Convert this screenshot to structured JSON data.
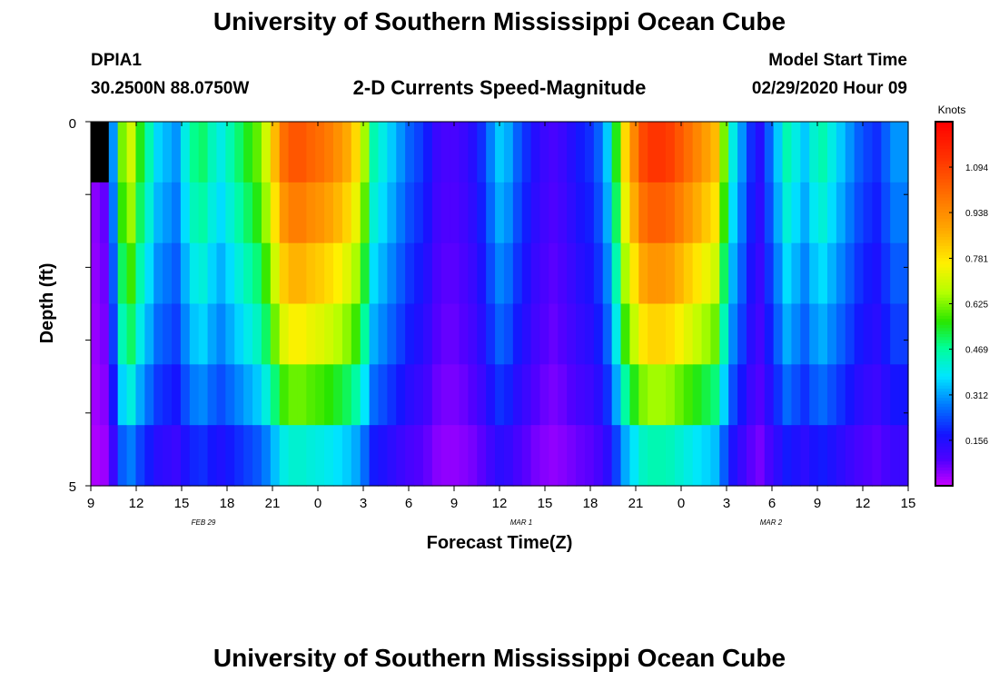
{
  "header": {
    "title_top": "University of Southern Mississippi Ocean Cube",
    "title_bottom": "University of Southern Mississippi Ocean Cube",
    "station_id": "DPIA1",
    "station_coords": "30.2500N 88.0750W",
    "subtitle": "2-D Currents Speed-Magnitude",
    "model_start_label": "Model Start Time",
    "model_start_value": "02/29/2020 Hour 09"
  },
  "chart_data": {
    "type": "heatmap",
    "title": "2-D Currents Speed-Magnitude",
    "xlabel": "Forecast Time(Z)",
    "ylabel": "Depth (ft)",
    "yticks": [
      "0",
      "5"
    ],
    "ylim": [
      0,
      5
    ],
    "xticks": [
      "9",
      "12",
      "15",
      "18",
      "21",
      "0",
      "3",
      "6",
      "9",
      "12",
      "15",
      "18",
      "21",
      "0",
      "3",
      "6",
      "9",
      "12",
      "15"
    ],
    "date_labels": [
      "FEB 29",
      "MAR 1",
      "MAR 2"
    ],
    "colorbar": {
      "label": "Knots",
      "ticks": [
        "1.094",
        "0.938",
        "0.781",
        "0.625",
        "0.469",
        "0.312",
        "0.156"
      ],
      "range": [
        0,
        1.25
      ]
    },
    "surface_speed_by_hour_kn": [
      0.05,
      0.08,
      0.3,
      0.62,
      0.7,
      0.55,
      0.45,
      0.36,
      0.33,
      0.3,
      0.4,
      0.48,
      0.5,
      0.44,
      0.4,
      0.45,
      0.5,
      0.55,
      0.6,
      0.7,
      0.85,
      1.0,
      1.05,
      1.05,
      1.02,
      1.0,
      0.97,
      0.93,
      0.88,
      0.8,
      0.65,
      0.45,
      0.4,
      0.35,
      0.3,
      0.25,
      0.22,
      0.18,
      0.12,
      0.1,
      0.1,
      0.12,
      0.15,
      0.2,
      0.28,
      0.35,
      0.32,
      0.25,
      0.2,
      0.15,
      0.12,
      0.1,
      0.12,
      0.15,
      0.18,
      0.2,
      0.25,
      0.35,
      0.55,
      0.8,
      0.95,
      1.08,
      1.12,
      1.12,
      1.1,
      1.05,
      1.0,
      0.95,
      0.9,
      0.85,
      0.62,
      0.4,
      0.3,
      0.2,
      0.15,
      0.25,
      0.35,
      0.45,
      0.4,
      0.35,
      0.42,
      0.45,
      0.4,
      0.35,
      0.3,
      0.25,
      0.22,
      0.2,
      0.25,
      0.3,
      0.3
    ],
    "depth_factors": [
      1.0,
      0.92,
      0.82,
      0.72,
      0.58,
      0.4
    ],
    "dry_cells": [
      [
        0,
        0
      ],
      [
        1,
        0
      ]
    ]
  }
}
